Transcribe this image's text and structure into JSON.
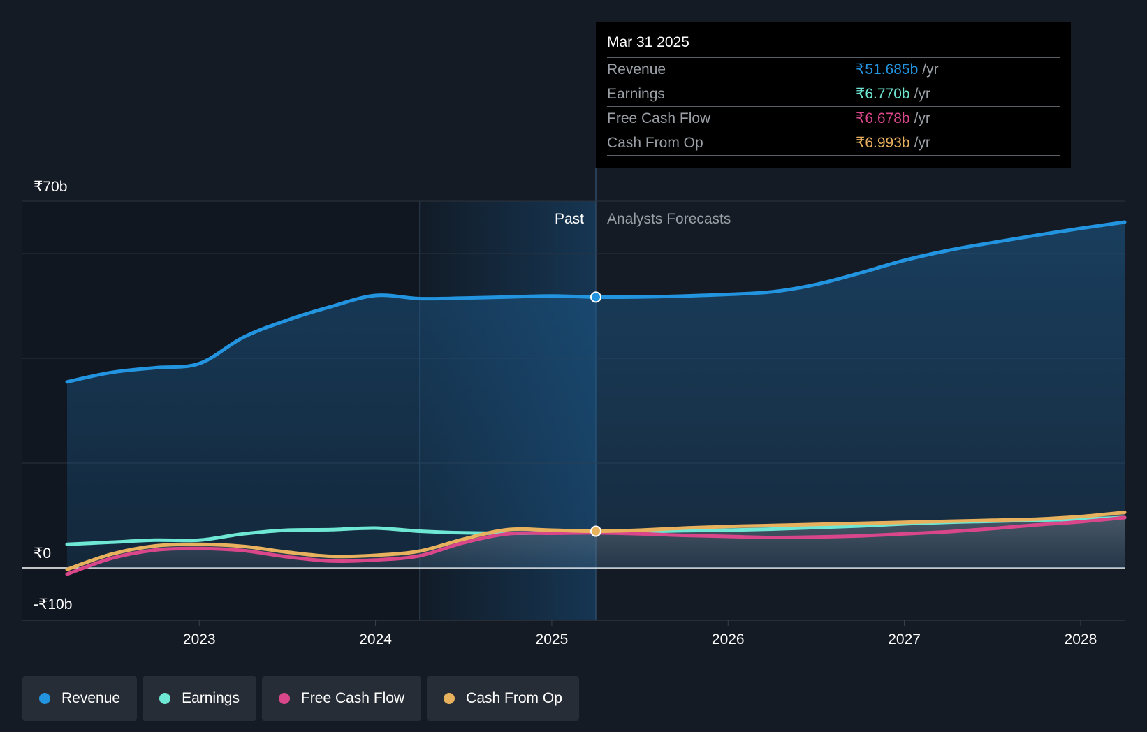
{
  "chart_data": {
    "type": "area",
    "currency_prefix": "₹",
    "y_ticks": [
      "₹70b",
      "₹0",
      "-₹10b"
    ],
    "ylim": [
      -10,
      70
    ],
    "x_ticks": [
      "2023",
      "2024",
      "2025",
      "2026",
      "2027",
      "2028"
    ],
    "xlim": [
      2022.25,
      2028.25
    ],
    "divider_label_past": "Past",
    "divider_label_forecast": "Analysts Forecasts",
    "divider_x": 2025.25,
    "highlight_start_x": 2024.25,
    "colors": {
      "revenue": "#2394df",
      "earnings": "#6ee7d4",
      "free_cash_flow": "#d9478a",
      "cash_from_op": "#e8b15d"
    },
    "series": [
      {
        "name": "Revenue",
        "key": "revenue",
        "points": [
          [
            2022.25,
            35.5
          ],
          [
            2022.5,
            37.3
          ],
          [
            2022.75,
            38.2
          ],
          [
            2023.0,
            39.0
          ],
          [
            2023.25,
            44.0
          ],
          [
            2023.5,
            47.3
          ],
          [
            2023.75,
            49.9
          ],
          [
            2024.0,
            52.0
          ],
          [
            2024.25,
            51.4
          ],
          [
            2024.5,
            51.5
          ],
          [
            2024.75,
            51.7
          ],
          [
            2025.0,
            51.9
          ],
          [
            2025.25,
            51.685
          ],
          [
            2025.5,
            51.7
          ],
          [
            2025.75,
            51.9
          ],
          [
            2026.0,
            52.2
          ],
          [
            2026.25,
            52.7
          ],
          [
            2026.5,
            54.1
          ],
          [
            2026.75,
            56.3
          ],
          [
            2027.0,
            58.7
          ],
          [
            2027.25,
            60.6
          ],
          [
            2027.5,
            62.1
          ],
          [
            2027.75,
            63.5
          ],
          [
            2028.0,
            64.8
          ],
          [
            2028.25,
            66.0
          ]
        ]
      },
      {
        "name": "Earnings",
        "key": "earnings",
        "points": [
          [
            2022.25,
            4.5
          ],
          [
            2022.5,
            4.9
          ],
          [
            2022.75,
            5.3
          ],
          [
            2023.0,
            5.3
          ],
          [
            2023.25,
            6.5
          ],
          [
            2023.5,
            7.2
          ],
          [
            2023.75,
            7.3
          ],
          [
            2024.0,
            7.6
          ],
          [
            2024.25,
            7.0
          ],
          [
            2024.5,
            6.7
          ],
          [
            2024.75,
            6.6
          ],
          [
            2025.0,
            6.7
          ],
          [
            2025.25,
            6.77
          ],
          [
            2025.5,
            6.9
          ],
          [
            2025.75,
            7.1
          ],
          [
            2026.0,
            7.2
          ],
          [
            2026.25,
            7.4
          ],
          [
            2026.5,
            7.7
          ],
          [
            2026.75,
            8.0
          ],
          [
            2027.0,
            8.4
          ],
          [
            2027.25,
            8.7
          ],
          [
            2027.5,
            8.9
          ],
          [
            2027.75,
            9.1
          ],
          [
            2028.0,
            9.3
          ],
          [
            2028.25,
            9.6
          ]
        ]
      },
      {
        "name": "Free Cash Flow",
        "key": "free_cash_flow",
        "points": [
          [
            2022.25,
            -1.2
          ],
          [
            2022.5,
            1.8
          ],
          [
            2022.75,
            3.4
          ],
          [
            2023.0,
            3.7
          ],
          [
            2023.25,
            3.3
          ],
          [
            2023.5,
            2.1
          ],
          [
            2023.75,
            1.3
          ],
          [
            2024.0,
            1.5
          ],
          [
            2024.25,
            2.3
          ],
          [
            2024.5,
            4.8
          ],
          [
            2024.75,
            6.5
          ],
          [
            2025.0,
            6.6
          ],
          [
            2025.25,
            6.678
          ],
          [
            2025.5,
            6.5
          ],
          [
            2025.75,
            6.2
          ],
          [
            2026.0,
            6.0
          ],
          [
            2026.25,
            5.8
          ],
          [
            2026.5,
            5.9
          ],
          [
            2026.75,
            6.1
          ],
          [
            2027.0,
            6.5
          ],
          [
            2027.25,
            6.9
          ],
          [
            2027.5,
            7.5
          ],
          [
            2027.75,
            8.2
          ],
          [
            2028.0,
            8.8
          ],
          [
            2028.25,
            9.6
          ]
        ]
      },
      {
        "name": "Cash From Op",
        "key": "cash_from_op",
        "points": [
          [
            2022.25,
            -0.3
          ],
          [
            2022.5,
            2.6
          ],
          [
            2022.75,
            4.2
          ],
          [
            2023.0,
            4.5
          ],
          [
            2023.25,
            4.1
          ],
          [
            2023.5,
            3.0
          ],
          [
            2023.75,
            2.2
          ],
          [
            2024.0,
            2.4
          ],
          [
            2024.25,
            3.2
          ],
          [
            2024.5,
            5.5
          ],
          [
            2024.75,
            7.3
          ],
          [
            2025.0,
            7.2
          ],
          [
            2025.25,
            6.993
          ],
          [
            2025.5,
            7.2
          ],
          [
            2025.75,
            7.6
          ],
          [
            2026.0,
            7.9
          ],
          [
            2026.25,
            8.1
          ],
          [
            2026.5,
            8.3
          ],
          [
            2026.75,
            8.5
          ],
          [
            2027.0,
            8.7
          ],
          [
            2027.25,
            8.9
          ],
          [
            2027.5,
            9.1
          ],
          [
            2027.75,
            9.3
          ],
          [
            2028.0,
            9.8
          ],
          [
            2028.25,
            10.6
          ]
        ]
      }
    ]
  },
  "tooltip": {
    "date": "Mar 31 2025",
    "rows": [
      {
        "label": "Revenue",
        "value": "₹51.685b",
        "unit": "/yr",
        "key": "revenue"
      },
      {
        "label": "Earnings",
        "value": "₹6.770b",
        "unit": "/yr",
        "key": "earnings"
      },
      {
        "label": "Free Cash Flow",
        "value": "₹6.678b",
        "unit": "/yr",
        "key": "free_cash_flow"
      },
      {
        "label": "Cash From Op",
        "value": "₹6.993b",
        "unit": "/yr",
        "key": "cash_from_op"
      }
    ]
  },
  "legend": [
    {
      "label": "Revenue",
      "key": "revenue"
    },
    {
      "label": "Earnings",
      "key": "earnings"
    },
    {
      "label": "Free Cash Flow",
      "key": "free_cash_flow"
    },
    {
      "label": "Cash From Op",
      "key": "cash_from_op"
    }
  ]
}
